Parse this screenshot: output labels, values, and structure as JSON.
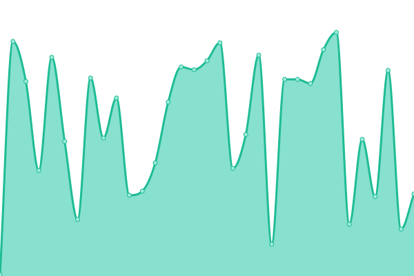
{
  "chart_data": {
    "type": "area",
    "title": "",
    "xlabel": "",
    "ylabel": "",
    "x": [
      0,
      1,
      2,
      3,
      4,
      5,
      6,
      7,
      8,
      9,
      10,
      11,
      12,
      13,
      14,
      15,
      16,
      17,
      18,
      19,
      20,
      21,
      22,
      23,
      24,
      25,
      26,
      27,
      28,
      29,
      30,
      31,
      32
    ],
    "values": [
      2,
      340,
      282,
      153,
      317,
      195,
      82,
      287,
      200,
      258,
      117,
      123,
      164,
      252,
      303,
      299,
      312,
      338,
      156,
      205,
      320,
      46,
      285,
      285,
      279,
      328,
      353,
      75,
      198,
      115,
      298,
      68,
      119
    ],
    "ylim": [
      0,
      400
    ],
    "grid": false,
    "axes_visible": false,
    "smooth": true,
    "markers": true,
    "colors": {
      "line": "#1dbc94",
      "fill": "#88e0cf",
      "marker_fill": "#9eeadb"
    }
  }
}
